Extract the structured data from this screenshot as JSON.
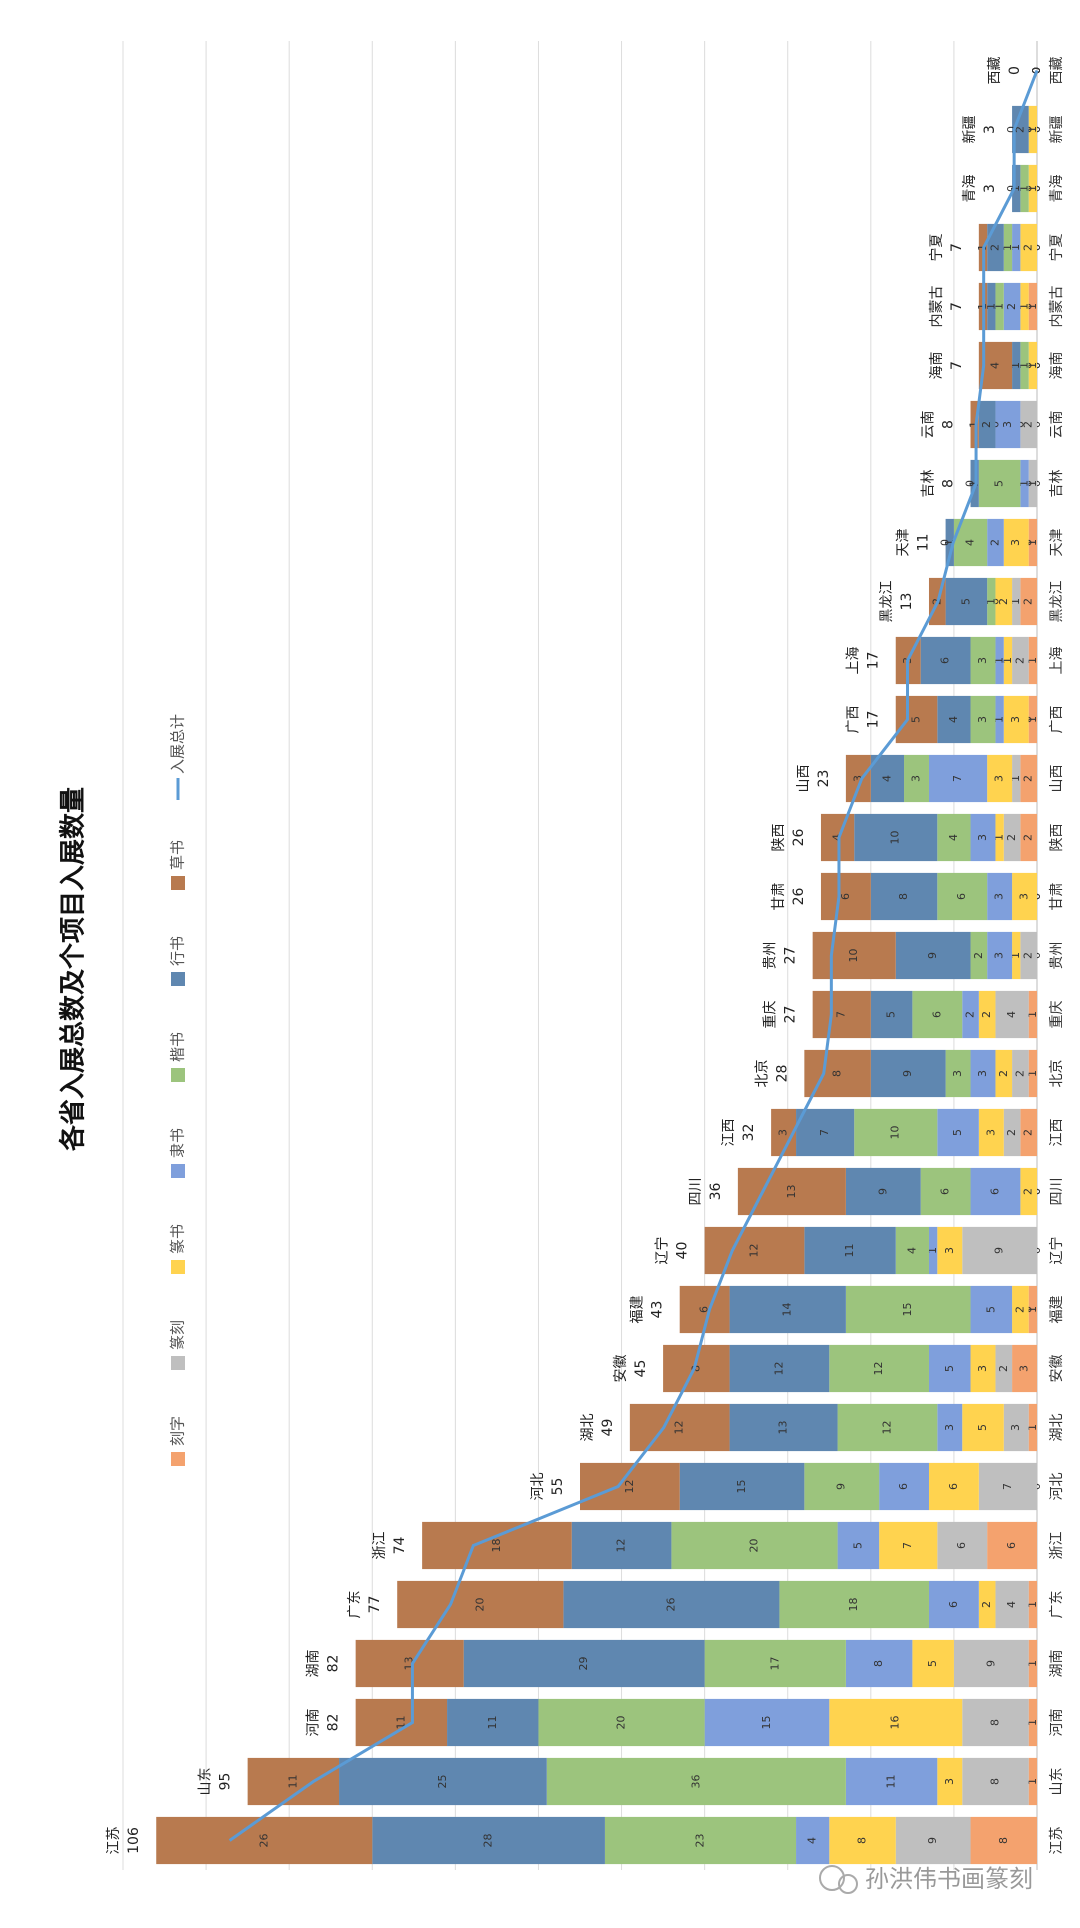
{
  "chart_data": {
    "type": "bar",
    "stacked": true,
    "title": "各省入展总数及个项目入展数量",
    "categories": [
      "江苏",
      "山东",
      "河南",
      "湖南",
      "广东",
      "浙江",
      "河北",
      "湖北",
      "安徽",
      "福建",
      "辽宁",
      "四川",
      "江西",
      "北京",
      "重庆",
      "贵州",
      "甘肃",
      "陕西",
      "山西",
      "广西",
      "上海",
      "黑龙江",
      "天津",
      "吉林",
      "云南",
      "海南",
      "内蒙古",
      "宁夏",
      "青海",
      "新疆",
      "西藏"
    ],
    "series": [
      {
        "name": "刻字",
        "color": "#f4a26e",
        "values": [
          8,
          1,
          1,
          1,
          1,
          6,
          0,
          1,
          3,
          1,
          0,
          0,
          2,
          1,
          1,
          0,
          0,
          2,
          2,
          1,
          1,
          2,
          1,
          0,
          0,
          0,
          1,
          0,
          0,
          0,
          0
        ]
      },
      {
        "name": "篆刻",
        "color": "#bfbfbf",
        "values": [
          9,
          8,
          8,
          9,
          4,
          6,
          7,
          3,
          2,
          0,
          9,
          0,
          2,
          2,
          4,
          2,
          0,
          2,
          1,
          0,
          2,
          1,
          0,
          1,
          2,
          0,
          0,
          0,
          0,
          0,
          0
        ]
      },
      {
        "name": "篆书",
        "color": "#ffd34f",
        "values": [
          8,
          3,
          16,
          5,
          2,
          7,
          6,
          5,
          3,
          2,
          3,
          2,
          3,
          2,
          2,
          1,
          3,
          1,
          3,
          3,
          1,
          2,
          3,
          0,
          0,
          1,
          1,
          2,
          1,
          1,
          0
        ]
      },
      {
        "name": "隶书",
        "color": "#7f9fdc",
        "values": [
          4,
          11,
          15,
          8,
          6,
          5,
          6,
          3,
          5,
          5,
          1,
          6,
          5,
          3,
          2,
          3,
          3,
          3,
          7,
          1,
          1,
          0,
          2,
          1,
          3,
          0,
          2,
          1,
          0,
          0,
          0
        ]
      },
      {
        "name": "楷书",
        "color": "#9cc47d",
        "values": [
          23,
          36,
          20,
          17,
          18,
          20,
          9,
          12,
          12,
          15,
          4,
          6,
          10,
          3,
          6,
          2,
          6,
          4,
          3,
          3,
          3,
          1,
          4,
          5,
          0,
          1,
          1,
          1,
          1,
          0,
          0
        ]
      },
      {
        "name": "行书",
        "color": "#5f87b0",
        "values": [
          28,
          25,
          11,
          29,
          26,
          12,
          15,
          13,
          12,
          14,
          11,
          9,
          7,
          9,
          5,
          9,
          8,
          10,
          4,
          4,
          6,
          5,
          1,
          1,
          2,
          1,
          1,
          2,
          1,
          2,
          0
        ]
      },
      {
        "name": "草书",
        "color": "#b87a4f",
        "values": [
          26,
          11,
          11,
          13,
          20,
          18,
          12,
          12,
          8,
          6,
          12,
          13,
          3,
          8,
          7,
          10,
          6,
          4,
          3,
          5,
          3,
          2,
          0,
          0,
          1,
          4,
          1,
          1,
          0,
          0,
          0
        ]
      },
      {
        "name": "入展总计",
        "color": "#5b9bd5",
        "type": "line",
        "axis": "y2",
        "values": [
          106,
          95,
          82,
          82,
          77,
          74,
          55,
          49,
          45,
          43,
          40,
          36,
          32,
          28,
          27,
          27,
          26,
          26,
          23,
          17,
          17,
          13,
          11,
          8,
          8,
          7,
          7,
          7,
          3,
          3,
          0
        ]
      }
    ],
    "ylim": [
      0,
      110
    ],
    "yticks": [
      0,
      10,
      20,
      30,
      40,
      50,
      60,
      70,
      80,
      90,
      100,
      110
    ],
    "y2lim": [
      0,
      120
    ],
    "grid": true,
    "legend": "top",
    "watermark": "孙洪伟书画篆刻"
  }
}
